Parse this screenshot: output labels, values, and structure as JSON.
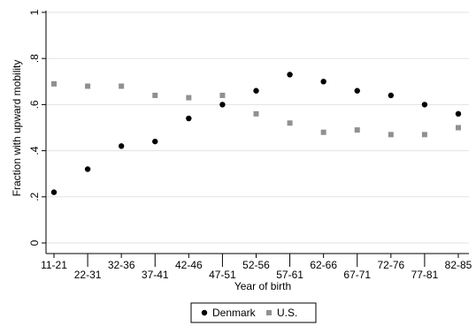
{
  "chart_data": {
    "type": "scatter",
    "title": "",
    "xlabel": "Year of birth",
    "ylabel": "Fraction with upward mobility",
    "categories": [
      "11-21",
      "22-31",
      "32-36",
      "37-41",
      "42-46",
      "47-51",
      "52-56",
      "57-61",
      "62-66",
      "67-71",
      "72-76",
      "77-81",
      "82-85"
    ],
    "ylim": [
      0,
      1
    ],
    "yticks": [
      0,
      0.2,
      0.4,
      0.6,
      0.8,
      1
    ],
    "ytick_labels": [
      "0",
      ".2",
      ".4",
      ".6",
      ".8",
      "1"
    ],
    "grid": true,
    "legend_position": "bottom",
    "series": [
      {
        "name": "Denmark",
        "marker": "circle",
        "color": "#000000",
        "values": [
          0.22,
          0.32,
          0.42,
          0.44,
          0.54,
          0.6,
          0.66,
          0.73,
          0.7,
          0.66,
          0.64,
          0.6,
          0.56
        ]
      },
      {
        "name": "U.S.",
        "marker": "square",
        "color": "#909090",
        "values": [
          0.69,
          0.68,
          0.68,
          0.64,
          0.63,
          0.64,
          0.56,
          0.52,
          0.48,
          0.49,
          0.47,
          0.47,
          0.5
        ]
      }
    ]
  }
}
